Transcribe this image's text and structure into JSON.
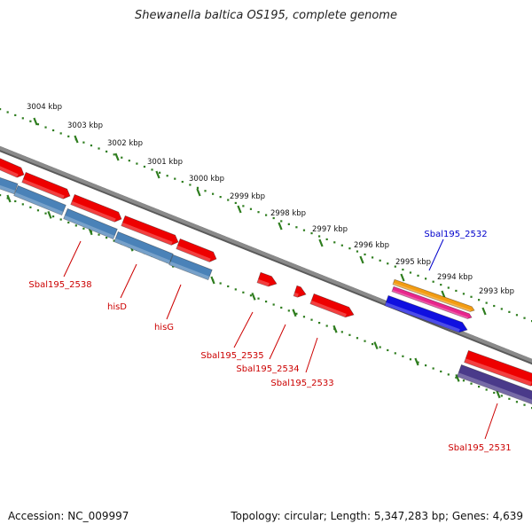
{
  "title": "Shewanella baltica OS195, complete genome",
  "footer": {
    "accession": "Accession: NC_009997",
    "topology": "Topology: circular; Length: 5,347,283 bp; Genes: 4,639"
  },
  "colors": {
    "backbone": "#8a8a8a",
    "scale_dots": "#2e7d1e",
    "gene_red": "#ee0000",
    "gene_blue": "#4a82b8",
    "label_red": "#cc0000",
    "label_blue": "#0000cc",
    "gene_orange": "#f39c12",
    "gene_pink": "#e8268c",
    "gene_darkblue": "#1010e0",
    "gene_purple": "#4a3a8a"
  },
  "scale_labels": [
    "3004 kbp",
    "3003 kbp",
    "3002 kbp",
    "3001 kbp",
    "3000 kbp",
    "2999 kbp",
    "2998 kbp",
    "2997 kbp",
    "2996 kbp",
    "2995 kbp",
    "2994 kbp",
    "2993 kbp"
  ],
  "gene_labels": [
    {
      "id": "sbal2538",
      "text": "Sbal195_2538",
      "color": "red"
    },
    {
      "id": "hisd",
      "text": "hisD",
      "color": "red"
    },
    {
      "id": "hisg",
      "text": "hisG",
      "color": "red"
    },
    {
      "id": "sbal2535",
      "text": "Sbal195_2535",
      "color": "red"
    },
    {
      "id": "sbal2534",
      "text": "Sbal195_2534",
      "color": "red"
    },
    {
      "id": "sbal2533",
      "text": "Sbal195_2533",
      "color": "red"
    },
    {
      "id": "sbal2532",
      "text": "Sbal195_2532",
      "color": "blue"
    },
    {
      "id": "sbal2531",
      "text": "Sbal195_2531",
      "color": "red"
    }
  ]
}
